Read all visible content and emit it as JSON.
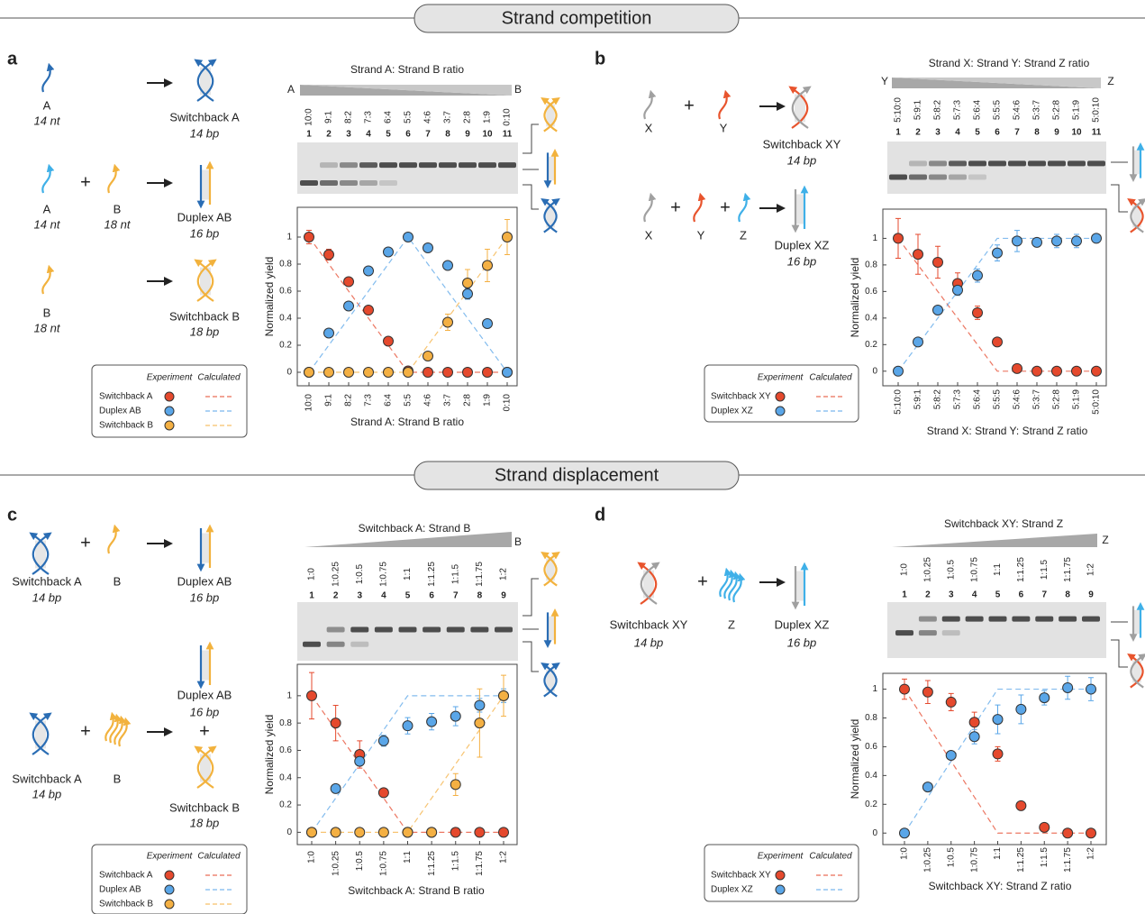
{
  "sections": [
    "Strand competition",
    "Strand displacement"
  ],
  "panel_labels": [
    "a",
    "b",
    "c",
    "d"
  ],
  "diagrams": [
    [
      {
        "name": "A",
        "sub": "14 nt"
      },
      {
        "name": "Switchback A",
        "sub": "14 bp"
      },
      {
        "name": "A",
        "sub": "14 nt"
      },
      {
        "name": "B",
        "sub": "18 nt"
      },
      {
        "name": "Duplex AB",
        "sub": "16 bp"
      },
      {
        "name": "B",
        "sub": "18 nt"
      },
      {
        "name": "Switchback B",
        "sub": "18 bp"
      }
    ],
    [
      {
        "name": "X"
      },
      {
        "name": "Y"
      },
      {
        "name": "Switchback XY",
        "sub": "14 bp"
      },
      {
        "name": "X"
      },
      {
        "name": "Y"
      },
      {
        "name": "Z"
      },
      {
        "name": "Duplex XZ",
        "sub": "16 bp"
      }
    ],
    [
      {
        "name": "Switchback A",
        "sub": "14 bp"
      },
      {
        "name": "B"
      },
      {
        "name": "Duplex AB",
        "sub": "16 bp"
      },
      {
        "name": "Switchback A",
        "sub": "14 bp"
      },
      {
        "name": "B"
      },
      {
        "name": "Duplex AB",
        "sub": "16 bp"
      },
      {
        "name": "Switchback B",
        "sub": "18 bp"
      }
    ],
    [
      {
        "name": "Switchback XY",
        "sub": "14 bp"
      },
      {
        "name": "Z"
      },
      {
        "name": "Duplex XZ",
        "sub": "16 bp"
      }
    ]
  ],
  "chart_data": [
    {
      "type": "scatter",
      "x_label": "Strand A: Strand B ratio",
      "y_label": "Normalized yield",
      "categories": [
        "10:0",
        "9:1",
        "8:2",
        "7:3",
        "6:4",
        "5:5",
        "4:6",
        "3:7",
        "2:8",
        "1:9",
        "0:10"
      ],
      "ylim": [
        -0.1,
        1.22
      ],
      "yticks": [
        0,
        0.2,
        0.4,
        0.6,
        0.8,
        1
      ],
      "legend_headers": [
        "Experiment",
        "Calculated"
      ],
      "gel": {
        "title": "Strand A: Strand B ratio",
        "left": "A",
        "right": "B",
        "lanes": [
          1,
          2,
          3,
          4,
          5,
          6,
          7,
          8,
          9,
          10,
          11
        ]
      },
      "series": [
        {
          "name": "Switchback A",
          "color": "#e5492d",
          "values": [
            1,
            0.87,
            0.67,
            0.46,
            0.23,
            0.01,
            0,
            0,
            0,
            0,
            0
          ],
          "errors": [
            0.05,
            0.04,
            0.02,
            0.02,
            0.02,
            0.01,
            0,
            0,
            0,
            0,
            0
          ],
          "calculated": [
            1,
            0.8,
            0.6,
            0.4,
            0.2,
            0,
            0,
            0,
            0,
            0,
            0
          ]
        },
        {
          "name": "Duplex AB",
          "color": "#5aa6e8",
          "values": [
            0,
            0.29,
            0.49,
            0.75,
            0.89,
            1,
            0.92,
            0.79,
            0.58,
            0.36,
            0
          ],
          "errors": [
            0,
            0.02,
            0.02,
            0.02,
            0.02,
            0.01,
            0.02,
            0.03,
            0.04,
            0.02,
            0
          ],
          "calculated": [
            0,
            0.2,
            0.4,
            0.6,
            0.8,
            1,
            0.8,
            0.6,
            0.4,
            0.2,
            0
          ]
        },
        {
          "name": "Switchback B",
          "color": "#f4b043",
          "values": [
            0,
            0,
            0,
            0,
            0,
            0,
            0.12,
            0.37,
            0.66,
            0.79,
            1
          ],
          "errors": [
            0,
            0,
            0,
            0,
            0,
            0,
            0.02,
            0.06,
            0.1,
            0.12,
            0.13
          ],
          "calculated": [
            0,
            0,
            0,
            0,
            0,
            0,
            0.2,
            0.4,
            0.6,
            0.8,
            1
          ]
        }
      ]
    },
    {
      "type": "scatter",
      "x_label": "Strand X: Strand Y: Strand Z ratio",
      "y_label": "Normalized yield",
      "categories": [
        "5:10:0",
        "5:9:1",
        "5:8:2",
        "5:7:3",
        "5:6:4",
        "5:5:5",
        "5:4:6",
        "5:3:7",
        "5:2:8",
        "5:1:9",
        "5:0:10"
      ],
      "ylim": [
        -0.11,
        1.22
      ],
      "yticks": [
        0,
        0.2,
        0.4,
        0.6,
        0.8,
        1
      ],
      "legend_headers": [
        "Experiment",
        "Calculated"
      ],
      "gel": {
        "title": "Strand X: Strand Y: Strand Z ratio",
        "left": "Y",
        "right": "Z",
        "lanes": [
          1,
          2,
          3,
          4,
          5,
          6,
          7,
          8,
          9,
          10,
          11
        ]
      },
      "series": [
        {
          "name": "Switchback XY",
          "color": "#e5492d",
          "values": [
            1,
            0.88,
            0.82,
            0.66,
            0.44,
            0.22,
            0.02,
            0,
            0,
            0,
            0
          ],
          "errors": [
            0.15,
            0.15,
            0.12,
            0.08,
            0.05,
            0.02,
            0.01,
            0,
            0,
            0,
            0
          ],
          "calculated": [
            1,
            0.8,
            0.6,
            0.4,
            0.2,
            0,
            0,
            0,
            0,
            0,
            0
          ]
        },
        {
          "name": "Duplex XZ",
          "color": "#5aa6e8",
          "values": [
            0,
            0.22,
            0.46,
            0.61,
            0.72,
            0.89,
            0.98,
            0.97,
            0.98,
            0.98,
            1
          ],
          "errors": [
            0,
            0.02,
            0.03,
            0.04,
            0.05,
            0.06,
            0.08,
            0.03,
            0.05,
            0.05,
            0.02
          ],
          "calculated": [
            0,
            0.2,
            0.4,
            0.6,
            0.8,
            1,
            1,
            1,
            1,
            1,
            1
          ]
        }
      ]
    },
    {
      "type": "scatter",
      "x_label": "Switchback A: Strand B ratio",
      "y_label": "Normalized yield",
      "categories": [
        "1:0",
        "1:0.25",
        "1:0.5",
        "1:0.75",
        "1:1",
        "1:1.25",
        "1:1.5",
        "1:1.75",
        "1:2"
      ],
      "ylim": [
        -0.09,
        1.23
      ],
      "yticks": [
        0,
        0.2,
        0.4,
        0.6,
        0.8,
        1
      ],
      "legend_headers": [
        "Experiment",
        "Calculated"
      ],
      "gel": {
        "title": "Switchback A: Strand B",
        "right": "B",
        "lanes": [
          1,
          2,
          3,
          4,
          5,
          6,
          7,
          8,
          9
        ]
      },
      "series": [
        {
          "name": "Switchback A",
          "color": "#e5492d",
          "values": [
            1,
            0.8,
            0.57,
            0.29,
            0,
            0,
            0,
            0,
            0
          ],
          "errors": [
            0.17,
            0.13,
            0.1,
            0.03,
            0,
            0,
            0,
            0,
            0
          ],
          "calculated": [
            1,
            0.75,
            0.5,
            0.25,
            0,
            0,
            0,
            0,
            0
          ]
        },
        {
          "name": "Duplex AB",
          "color": "#5aa6e8",
          "values": [
            0,
            0.32,
            0.52,
            0.67,
            0.78,
            0.81,
            0.85,
            0.93,
            1
          ],
          "errors": [
            0,
            0.02,
            0.03,
            0.04,
            0.06,
            0.06,
            0.07,
            0.05,
            0.05
          ],
          "calculated": [
            0,
            0.25,
            0.5,
            0.75,
            1,
            1,
            1,
            1,
            1
          ]
        },
        {
          "name": "Switchback B",
          "color": "#f4b043",
          "values": [
            0,
            0,
            0,
            0,
            0,
            0,
            0.35,
            0.8,
            1
          ],
          "errors": [
            0,
            0,
            0,
            0,
            0,
            0,
            0.08,
            0.25,
            0.15
          ],
          "calculated": [
            0,
            0,
            0,
            0,
            0,
            0.25,
            0.5,
            0.75,
            1
          ]
        }
      ]
    },
    {
      "type": "scatter",
      "x_label": "Switchback XY: Strand Z ratio",
      "y_label": "Normalized yield",
      "categories": [
        "1:0",
        "1:0.25",
        "1:0.5",
        "1:0.75",
        "1:1",
        "1:1.25",
        "1:1.5",
        "1:1.75",
        "1:2"
      ],
      "ylim": [
        -0.08,
        1.11
      ],
      "yticks": [
        0,
        0.2,
        0.4,
        0.6,
        0.8,
        1
      ],
      "legend_headers": [
        "Experiment",
        "Calculated"
      ],
      "gel": {
        "title": "Switchback XY: Strand Z",
        "right": "Z",
        "lanes": [
          1,
          2,
          3,
          4,
          5,
          6,
          7,
          8,
          9
        ]
      },
      "series": [
        {
          "name": "Switchback XY",
          "color": "#e5492d",
          "values": [
            1,
            0.98,
            0.91,
            0.77,
            0.55,
            0.19,
            0.04,
            0,
            0
          ],
          "errors": [
            0.07,
            0.08,
            0.06,
            0.07,
            0.05,
            0,
            0,
            0,
            0
          ],
          "calculated": [
            1,
            0.75,
            0.5,
            0.25,
            0,
            0,
            0,
            0,
            0
          ]
        },
        {
          "name": "Duplex XZ",
          "color": "#5aa6e8",
          "values": [
            0,
            0.32,
            0.54,
            0.67,
            0.79,
            0.86,
            0.94,
            1.01,
            1
          ],
          "errors": [
            0,
            0.02,
            0.02,
            0.05,
            0.1,
            0.1,
            0.05,
            0.08,
            0.08
          ],
          "calculated": [
            0,
            0.25,
            0.5,
            0.75,
            1,
            1,
            1,
            1,
            1
          ]
        }
      ]
    }
  ]
}
